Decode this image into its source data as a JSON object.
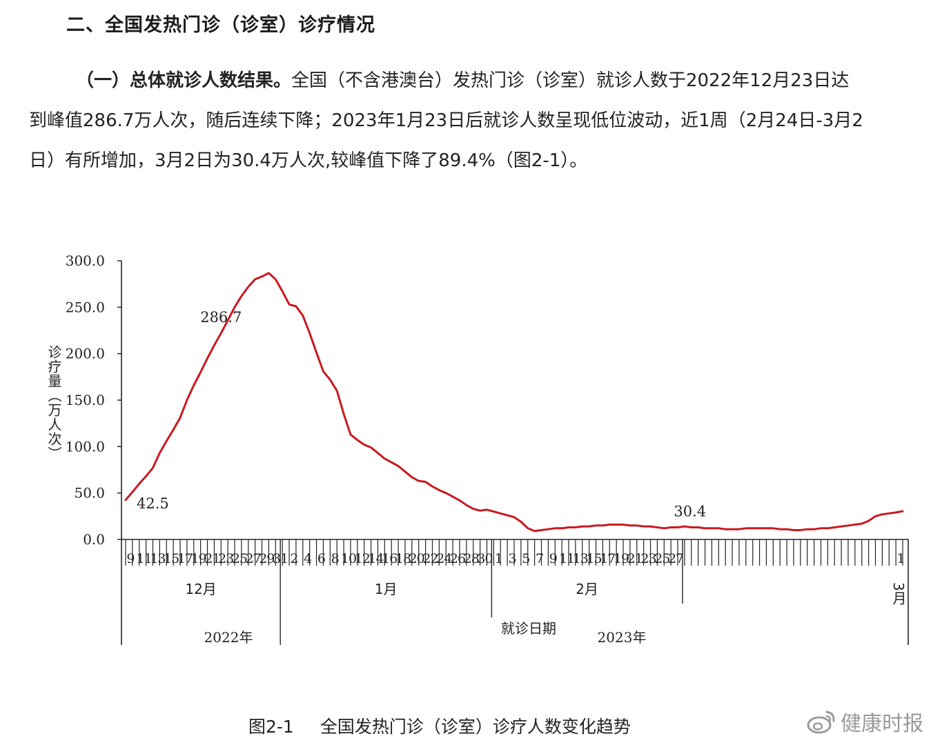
{
  "section_heading": "二、全国发热门诊（诊室）诊疗情况",
  "paragraph": {
    "lead": "（一）总体就诊人数结果。",
    "line1": "全国（不含港澳台）发热门诊（诊室）就诊人数于2022年12月23日达",
    "line2": "到峰值286.7万人次，随后连续下降；2023年1月23日后就诊人数呈现低位波动，近1周（2月24日-3月2",
    "line3": "日）有所增加，3月2日为30.4万人次,较峰值下降了89.4%（图2-1）。"
  },
  "caption": {
    "fig_no": "图2-1",
    "title": "全国发热门诊（诊室）诊疗人数变化趋势"
  },
  "watermark": {
    "text": "健康时报",
    "logo_icon": "weibo-logo-icon"
  },
  "chart_data": {
    "type": "line",
    "title": "",
    "xlabel": "就诊日期",
    "ylabel": "诊疗量（万人次）",
    "ylim": [
      0,
      300
    ],
    "yticks": [
      "0.0",
      "50.0",
      "100.0",
      "150.0",
      "200.0",
      "250.0",
      "300.0"
    ],
    "grid": false,
    "line_color": "#c8191e",
    "x_tick_labels": [
      "9",
      "11",
      "13",
      "15",
      "17",
      "19",
      "21",
      "23",
      "25",
      "27",
      "29",
      "31",
      "2",
      "4",
      "6",
      "8",
      "10",
      "12",
      "14",
      "16",
      "18",
      "20",
      "22",
      "24",
      "26",
      "28",
      "30",
      "1",
      "3",
      "5",
      "7",
      "9",
      "11",
      "13",
      "15",
      "17",
      "19",
      "21",
      "23",
      "25",
      "27",
      "1"
    ],
    "months": [
      "12月",
      "1月",
      "2月",
      "3月"
    ],
    "years": [
      "2022年",
      "2023年"
    ],
    "annotations": [
      {
        "date": "2022-12-23",
        "label": "286.7"
      },
      {
        "date": "2022-12-09",
        "label": "42.5"
      },
      {
        "date": "2023-03-02",
        "label": "30.4"
      }
    ],
    "series": [
      {
        "x_start": "2022-12-09",
        "x_end": "2023-03-02",
        "values": [
          42.5,
          51,
          60,
          68,
          77,
          93,
          106,
          118,
          131,
          150,
          166,
          180,
          195,
          209,
          222,
          236,
          250,
          262,
          272,
          280,
          283,
          286.7,
          280,
          267,
          253,
          251,
          241,
          222,
          201,
          181,
          172,
          160,
          135,
          113,
          107,
          102,
          99,
          93,
          87,
          83,
          79,
          73,
          67,
          63,
          62,
          57,
          53,
          50,
          46,
          42,
          37,
          33,
          31,
          32,
          30,
          28,
          26,
          24,
          19,
          12,
          9,
          10,
          11,
          12,
          12,
          13,
          13,
          14,
          14,
          15,
          15,
          16,
          16,
          16,
          15,
          15,
          14,
          14,
          13,
          12,
          13,
          13,
          14,
          13,
          13,
          12,
          12,
          12,
          11,
          11,
          11,
          12,
          12,
          12,
          12,
          12,
          11,
          11,
          10,
          10,
          11,
          11,
          12,
          12,
          13,
          14,
          15,
          16,
          17,
          20,
          25,
          27,
          28,
          29,
          30.4
        ]
      }
    ]
  }
}
